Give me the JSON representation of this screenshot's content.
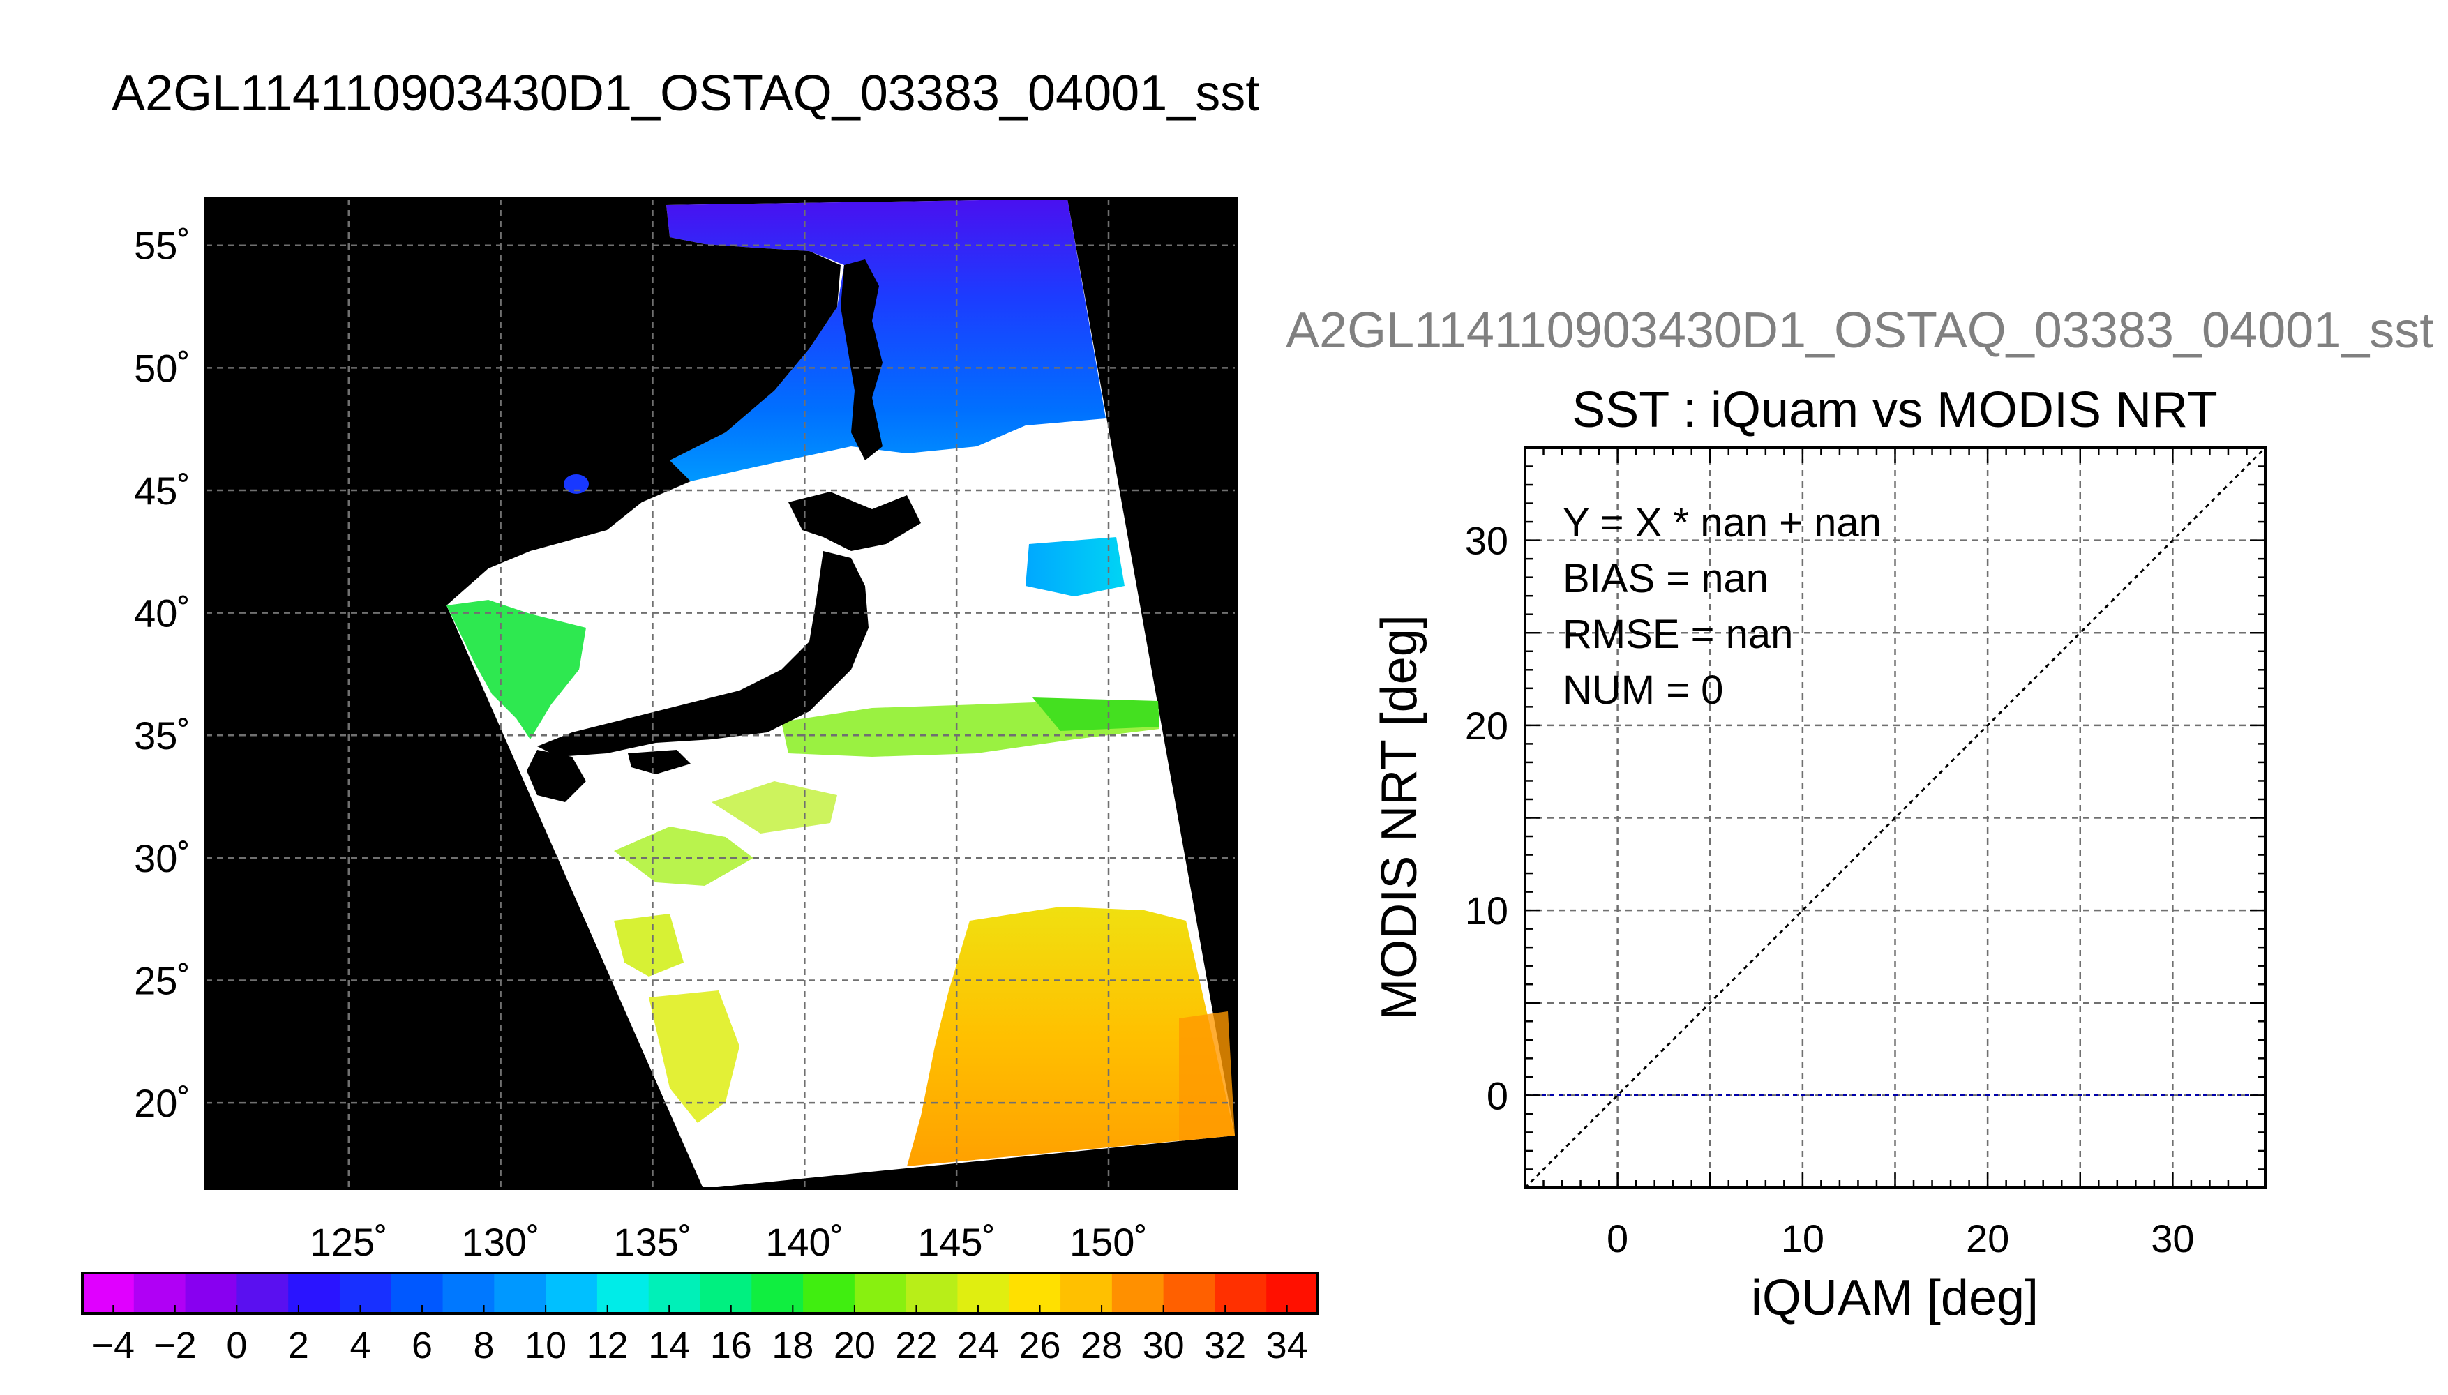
{
  "page": {
    "main_title": "A2GL114110903430D1_OSTAQ_03383_04001_sst"
  },
  "chart_data": [
    {
      "type": "heatmap",
      "name": "sst-map",
      "title": "",
      "x_ticks": [
        "125˚",
        "130˚",
        "135˚",
        "140˚",
        "145˚",
        "150˚"
      ],
      "x_tick_values": [
        125,
        130,
        135,
        140,
        145,
        150
      ],
      "y_ticks": [
        "20˚",
        "25˚",
        "30˚",
        "35˚",
        "40˚",
        "45˚",
        "50˚",
        "55˚"
      ],
      "y_tick_values": [
        20,
        25,
        30,
        35,
        40,
        45,
        50,
        55
      ],
      "xlim": [
        120.3,
        154.2
      ],
      "ylim": [
        16.5,
        56.9
      ],
      "grid": true,
      "colorbar": {
        "vmin": -5,
        "vmax": 35,
        "labels": [
          "−4",
          "−2",
          "0",
          "2",
          "4",
          "6",
          "8",
          "10",
          "12",
          "14",
          "16",
          "18",
          "20",
          "22",
          "24",
          "26",
          "28",
          "30",
          "32",
          "34"
        ],
        "colors": [
          "#e000ff",
          "#b000f5",
          "#8800f0",
          "#5a10f0",
          "#2a14ff",
          "#1830ff",
          "#0058ff",
          "#0078ff",
          "#0098ff",
          "#00c0ff",
          "#00ece8",
          "#00f0b8",
          "#00f080",
          "#10ee40",
          "#40ee10",
          "#88f010",
          "#b8ee18",
          "#e0ee10",
          "#ffe000",
          "#ffc000",
          "#ff9000",
          "#ff6000",
          "#ff3000",
          "#ff1000"
        ]
      }
    },
    {
      "type": "scatter",
      "name": "match-scatter",
      "title": "A2GL114110903430D1_OSTAQ_03383_04001_sst",
      "subtitle": "SST : iQuam vs MODIS NRT",
      "xlabel": "iQUAM [deg]",
      "ylabel": "MODIS NRT [deg]",
      "xlim": [
        -5,
        35
      ],
      "ylim": [
        -5,
        35
      ],
      "x_ticks": [
        0,
        10,
        20,
        30
      ],
      "y_ticks": [
        0,
        10,
        20,
        30
      ],
      "grid_step": 5,
      "grid": true,
      "points": [],
      "reference_lines": [
        {
          "kind": "identity",
          "color": "#000000"
        },
        {
          "kind": "horizontal",
          "y": 0,
          "color": "#0000aa"
        }
      ],
      "annotations": [
        "Y = X * nan + nan",
        "BIAS = nan",
        "RMSE = nan",
        "NUM = 0"
      ]
    }
  ]
}
